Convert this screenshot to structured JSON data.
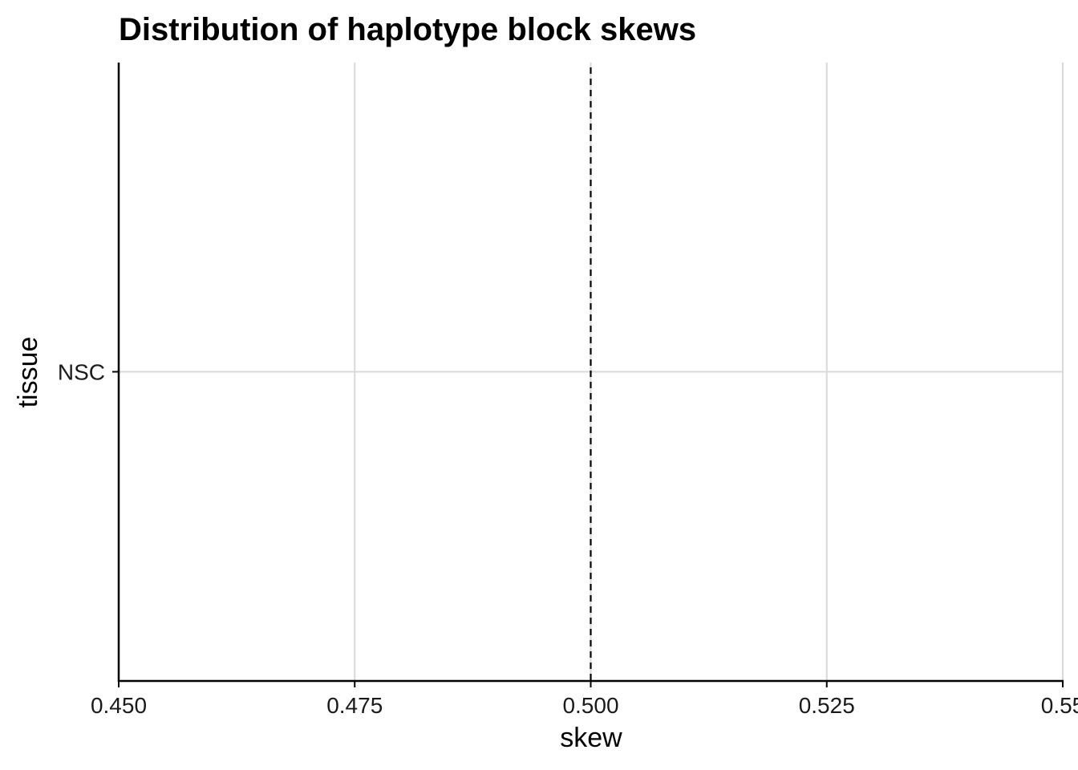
{
  "chart_data": {
    "type": "scatter",
    "title": "Distribution of haplotype block skews",
    "xlabel": "skew",
    "ylabel": "tissue",
    "categories": [
      "NSC"
    ],
    "x_ticks": [
      "0.450",
      "0.475",
      "0.500",
      "0.525",
      "0.55"
    ],
    "xlim": [
      0.45,
      0.55
    ],
    "x_tick_values": [
      0.45,
      0.475,
      0.5,
      0.525,
      0.55
    ],
    "reference_line": {
      "x": 0.5,
      "style": "dashed",
      "color": "#000000"
    },
    "series": [],
    "grid": true,
    "grid_color": "#d9d9d9",
    "axis_color": "#000000"
  }
}
